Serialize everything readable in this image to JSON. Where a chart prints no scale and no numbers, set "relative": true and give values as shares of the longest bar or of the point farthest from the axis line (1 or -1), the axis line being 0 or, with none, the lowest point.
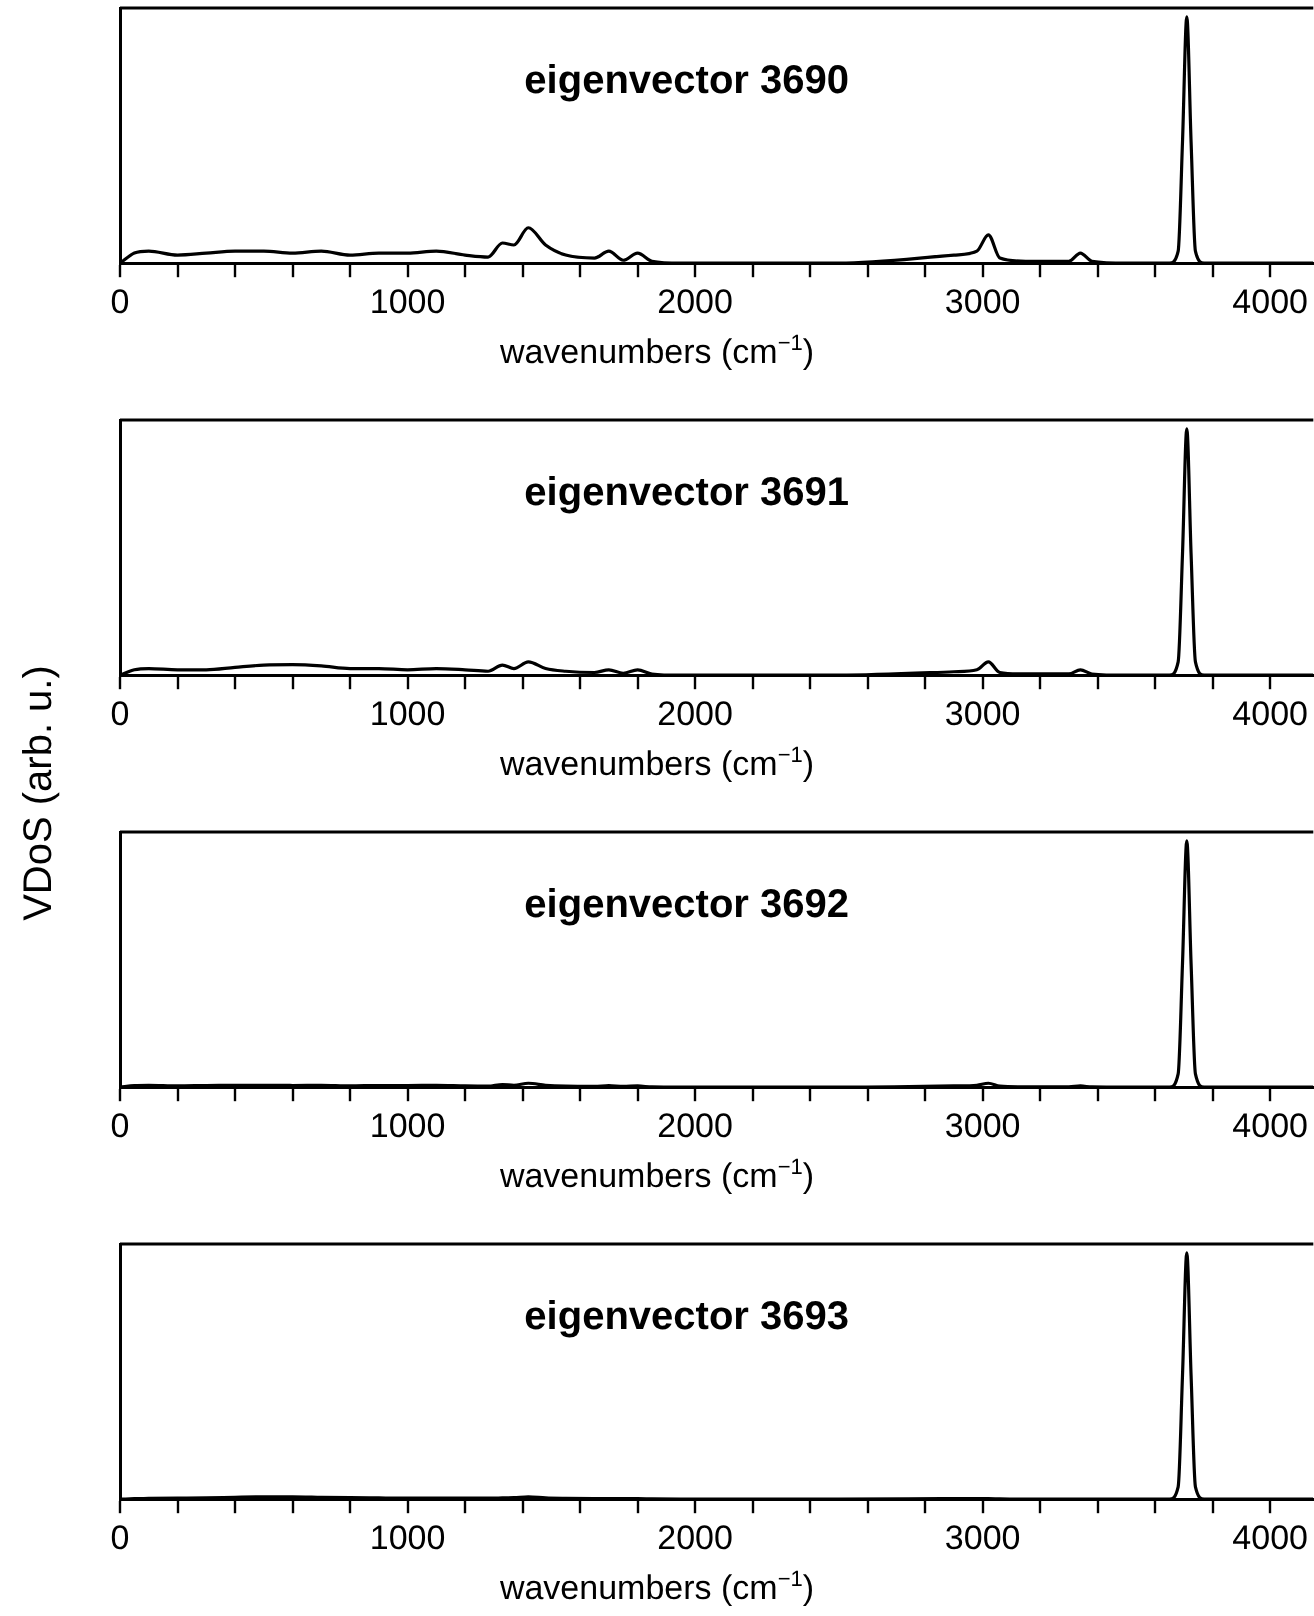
{
  "chart_data": [
    {
      "type": "line",
      "relative": true,
      "annotations": [
        "eigenvector 3690"
      ],
      "xlabel": "wavenumbers (cm$^{−1}$)",
      "xlim": [
        0,
        4150
      ],
      "xticks": [
        0,
        {
          "value": 200,
          "label": null
        },
        {
          "value": 400,
          "label": null
        },
        {
          "value": 600,
          "label": null
        },
        {
          "value": 800,
          "label": null
        },
        1000,
        {
          "value": 1200,
          "label": null
        },
        {
          "value": 1400,
          "label": null
        },
        {
          "value": 1600,
          "label": null
        },
        {
          "value": 1800,
          "label": null
        },
        2000,
        {
          "value": 2200,
          "label": null
        },
        {
          "value": 2400,
          "label": null
        },
        {
          "value": 2600,
          "label": null
        },
        {
          "value": 2800,
          "label": null
        },
        3000,
        {
          "value": 3200,
          "label": null
        },
        {
          "value": 3400,
          "label": null
        },
        {
          "value": 3600,
          "label": null
        },
        {
          "value": 3800,
          "label": null
        },
        4000
      ],
      "grid": false,
      "legend": false,
      "x": [
        0,
        50,
        100,
        200,
        300,
        400,
        500,
        600,
        700,
        800,
        900,
        1000,
        1100,
        1200,
        1280,
        1330,
        1370,
        1420,
        1480,
        1550,
        1650,
        1700,
        1750,
        1800,
        1850,
        1950,
        2500,
        2900,
        2980,
        3020,
        3060,
        3150,
        3300,
        3340,
        3380,
        3500,
        3650,
        3680,
        3695,
        3710,
        3725,
        3740,
        3770,
        4150
      ],
      "series": [
        {
          "color": "#000000",
          "values": [
            0,
            0.041,
            0.049,
            0.033,
            0.041,
            0.049,
            0.049,
            0.041,
            0.049,
            0.033,
            0.041,
            0.041,
            0.049,
            0.033,
            0.025,
            0.082,
            0.074,
            0.144,
            0.074,
            0.033,
            0.021,
            0.049,
            0.012,
            0.041,
            0.008,
            0,
            0,
            0.033,
            0.049,
            0.115,
            0.021,
            0.008,
            0.008,
            0.041,
            0.008,
            0,
            0,
            0.049,
            0.49,
            1,
            0.49,
            0.049,
            0,
            0
          ]
        }
      ]
    },
    {
      "type": "line",
      "relative": true,
      "annotations": [
        "eigenvector 3691"
      ],
      "xlabel": "wavenumbers (cm$^{−1}$)",
      "ylabel": "VDoS (arb. u.)",
      "xlim": [
        0,
        4150
      ],
      "xticks": [
        0,
        {
          "value": 200,
          "label": null
        },
        {
          "value": 400,
          "label": null
        },
        {
          "value": 600,
          "label": null
        },
        {
          "value": 800,
          "label": null
        },
        1000,
        {
          "value": 1200,
          "label": null
        },
        {
          "value": 1400,
          "label": null
        },
        {
          "value": 1600,
          "label": null
        },
        {
          "value": 1800,
          "label": null
        },
        2000,
        {
          "value": 2200,
          "label": null
        },
        {
          "value": 2400,
          "label": null
        },
        {
          "value": 2600,
          "label": null
        },
        {
          "value": 2800,
          "label": null
        },
        3000,
        {
          "value": 3200,
          "label": null
        },
        {
          "value": 3400,
          "label": null
        },
        {
          "value": 3600,
          "label": null
        },
        {
          "value": 3800,
          "label": null
        },
        4000
      ],
      "grid": false,
      "legend": false,
      "x": [
        0,
        50,
        100,
        200,
        300,
        400,
        500,
        600,
        700,
        800,
        900,
        1000,
        1100,
        1200,
        1280,
        1330,
        1370,
        1420,
        1480,
        1550,
        1650,
        1700,
        1750,
        1800,
        1850,
        1950,
        2500,
        2900,
        2980,
        3020,
        3060,
        3150,
        3300,
        3340,
        3380,
        3500,
        3650,
        3680,
        3695,
        3710,
        3725,
        3740,
        3770,
        4150
      ],
      "series": [
        {
          "color": "#000000",
          "values": [
            0,
            0.022,
            0.027,
            0.022,
            0.022,
            0.032,
            0.041,
            0.043,
            0.038,
            0.027,
            0.027,
            0.022,
            0.027,
            0.022,
            0.016,
            0.041,
            0.027,
            0.054,
            0.027,
            0.016,
            0.011,
            0.022,
            0.008,
            0.022,
            0.005,
            0,
            0,
            0.014,
            0.022,
            0.054,
            0.011,
            0.005,
            0.005,
            0.022,
            0.005,
            0,
            0,
            0.054,
            0.49,
            1,
            0.49,
            0.054,
            0,
            0
          ]
        }
      ]
    },
    {
      "type": "line",
      "relative": true,
      "annotations": [
        "eigenvector 3692"
      ],
      "xlabel": "wavenumbers (cm$^{−1}$)",
      "xlim": [
        0,
        4150
      ],
      "xticks": [
        0,
        {
          "value": 200,
          "label": null
        },
        {
          "value": 400,
          "label": null
        },
        {
          "value": 600,
          "label": null
        },
        {
          "value": 800,
          "label": null
        },
        1000,
        {
          "value": 1200,
          "label": null
        },
        {
          "value": 1400,
          "label": null
        },
        {
          "value": 1600,
          "label": null
        },
        {
          "value": 1800,
          "label": null
        },
        2000,
        {
          "value": 2200,
          "label": null
        },
        {
          "value": 2400,
          "label": null
        },
        {
          "value": 2600,
          "label": null
        },
        {
          "value": 2800,
          "label": null
        },
        3000,
        {
          "value": 3200,
          "label": null
        },
        {
          "value": 3400,
          "label": null
        },
        {
          "value": 3600,
          "label": null
        },
        {
          "value": 3800,
          "label": null
        },
        4000
      ],
      "grid": false,
      "legend": false,
      "x": [
        0,
        50,
        100,
        200,
        300,
        400,
        500,
        600,
        700,
        800,
        900,
        1000,
        1100,
        1200,
        1280,
        1330,
        1370,
        1420,
        1480,
        1550,
        1650,
        1700,
        1750,
        1800,
        1850,
        1950,
        2500,
        2900,
        2980,
        3020,
        3060,
        3150,
        3300,
        3340,
        3380,
        3500,
        3650,
        3680,
        3695,
        3710,
        3725,
        3740,
        3770,
        4150
      ],
      "series": [
        {
          "color": "#000000",
          "values": [
            0,
            0.007,
            0.008,
            0.005,
            0.007,
            0.008,
            0.008,
            0.007,
            0.008,
            0.005,
            0.007,
            0.007,
            0.008,
            0.005,
            0.004,
            0.011,
            0.008,
            0.016,
            0.008,
            0.004,
            0.003,
            0.007,
            0.003,
            0.005,
            0.001,
            0,
            0,
            0.005,
            0.008,
            0.016,
            0.004,
            0.001,
            0.001,
            0.005,
            0.001,
            0,
            0,
            0.054,
            0.5,
            1,
            0.5,
            0.054,
            0,
            0
          ]
        }
      ]
    },
    {
      "type": "line",
      "relative": true,
      "annotations": [
        "eigenvector 3693"
      ],
      "xlabel": "wavenumbers (cm$^{−1}$)",
      "xlim": [
        0,
        4150
      ],
      "xticks": [
        0,
        {
          "value": 200,
          "label": null
        },
        {
          "value": 400,
          "label": null
        },
        {
          "value": 600,
          "label": null
        },
        {
          "value": 800,
          "label": null
        },
        1000,
        {
          "value": 1200,
          "label": null
        },
        {
          "value": 1400,
          "label": null
        },
        {
          "value": 1600,
          "label": null
        },
        {
          "value": 1800,
          "label": null
        },
        2000,
        {
          "value": 2200,
          "label": null
        },
        {
          "value": 2400,
          "label": null
        },
        {
          "value": 2600,
          "label": null
        },
        {
          "value": 2800,
          "label": null
        },
        3000,
        {
          "value": 3200,
          "label": null
        },
        {
          "value": 3400,
          "label": null
        },
        {
          "value": 3600,
          "label": null
        },
        {
          "value": 3800,
          "label": null
        },
        4000
      ],
      "grid": false,
      "legend": false,
      "x": [
        0,
        50,
        100,
        200,
        300,
        400,
        500,
        600,
        700,
        800,
        900,
        1000,
        1100,
        1200,
        1280,
        1330,
        1370,
        1420,
        1480,
        1550,
        1650,
        1700,
        1750,
        1800,
        1850,
        1950,
        2500,
        2900,
        2980,
        3020,
        3060,
        3150,
        3300,
        3340,
        3380,
        3500,
        3650,
        3680,
        3695,
        3710,
        3725,
        3740,
        3770,
        4150
      ],
      "series": [
        {
          "color": "#000000",
          "values": [
            0,
            0.002,
            0.003,
            0.004,
            0.005,
            0.008,
            0.01,
            0.01,
            0.008,
            0.006,
            0.005,
            0.004,
            0.004,
            0.004,
            0.004,
            0.005,
            0.006,
            0.01,
            0.005,
            0.003,
            0.002,
            0.002,
            0.002,
            0.002,
            0.001,
            0,
            0,
            0.002,
            0.002,
            0.002,
            0.001,
            0,
            0,
            0,
            0,
            0,
            0,
            0.05,
            0.5,
            1,
            0.5,
            0.05,
            0,
            0
          ]
        }
      ]
    }
  ]
}
